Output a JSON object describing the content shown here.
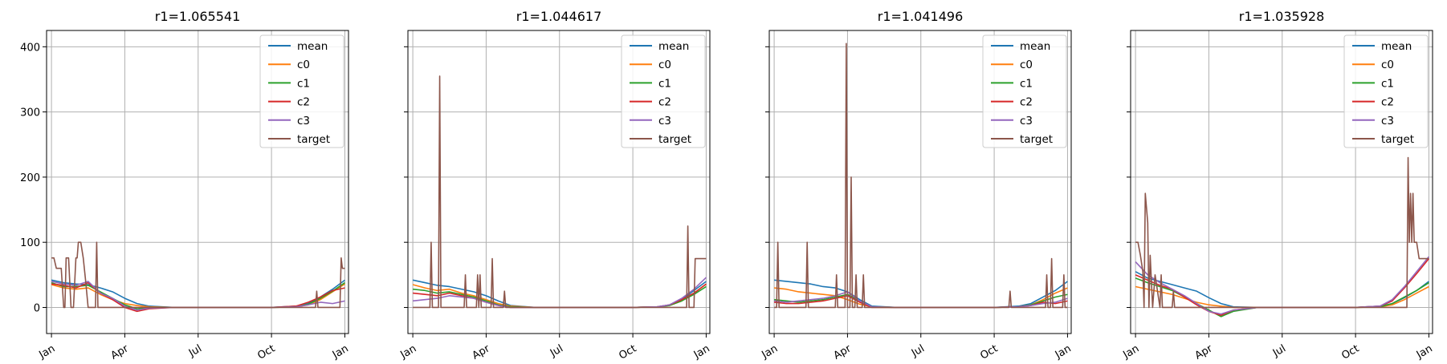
{
  "figure": {
    "sharey": true,
    "xtick_labels": [
      "Jan",
      "Apr",
      "Jul",
      "Oct",
      "Jan"
    ],
    "xtick_months": [
      0,
      3,
      6,
      9,
      12
    ],
    "ytick_labels": [
      "0",
      "100",
      "200",
      "300",
      "400"
    ],
    "yticks": [
      0,
      100,
      200,
      300,
      400
    ],
    "ylim": [
      -40,
      425
    ],
    "xlim_months": [
      -0.2,
      12.15
    ],
    "legend_entries": [
      "mean",
      "c0",
      "c1",
      "c2",
      "c3",
      "target"
    ],
    "colors": {
      "mean": "#1f77b4",
      "c0": "#ff7f0e",
      "c1": "#2ca02c",
      "c2": "#d62728",
      "c3": "#9467bd",
      "target": "#8c564b",
      "grid": "#b0b0b0",
      "axis": "#000000"
    }
  },
  "chart_data": [
    {
      "type": "line",
      "title": "r1=1.065541",
      "legend_placement": "top-right",
      "grid": true,
      "x_unit": "months from Jan",
      "series": [
        {
          "name": "mean",
          "x": [
            0,
            0.5,
            1,
            1.5,
            2,
            2.5,
            3,
            3.5,
            4,
            5,
            8,
            9,
            10,
            10.5,
            11,
            11.5,
            12
          ],
          "y": [
            42,
            38,
            36,
            35,
            30,
            24,
            14,
            6,
            2,
            0,
            0,
            0,
            2,
            6,
            16,
            28,
            42
          ]
        },
        {
          "name": "c0",
          "x": [
            0,
            0.5,
            1,
            1.5,
            2,
            2.5,
            3,
            3.5,
            4,
            5,
            8,
            9,
            10,
            10.5,
            11,
            11.5,
            12
          ],
          "y": [
            35,
            30,
            28,
            30,
            20,
            12,
            6,
            3,
            1,
            0,
            0,
            0,
            1,
            4,
            12,
            24,
            36
          ]
        },
        {
          "name": "c1",
          "x": [
            0,
            0.5,
            1,
            1.5,
            2,
            2.5,
            3,
            3.5,
            4,
            5,
            8,
            9,
            10,
            10.5,
            11,
            11.5,
            12
          ],
          "y": [
            38,
            32,
            32,
            34,
            24,
            14,
            4,
            -2,
            0,
            0,
            0,
            0,
            1,
            5,
            14,
            25,
            38
          ]
        },
        {
          "name": "c2",
          "x": [
            0,
            0.5,
            1,
            1.5,
            2,
            2.5,
            3,
            3.5,
            4,
            5,
            8,
            9,
            10,
            10.5,
            11,
            11.5,
            12
          ],
          "y": [
            36,
            34,
            30,
            38,
            22,
            12,
            0,
            -6,
            -2,
            0,
            0,
            0,
            2,
            8,
            16,
            26,
            30
          ]
        },
        {
          "name": "c3",
          "x": [
            0,
            0.5,
            1,
            1.5,
            2,
            2.5,
            3,
            3.5,
            4,
            5,
            8,
            9,
            10,
            10.5,
            11,
            11.5,
            12
          ],
          "y": [
            40,
            36,
            34,
            40,
            22,
            14,
            2,
            -4,
            -1,
            0,
            0,
            0,
            1,
            4,
            8,
            6,
            10
          ]
        },
        {
          "name": "target",
          "x": [
            0,
            0.1,
            0.2,
            0.4,
            0.5,
            0.55,
            0.6,
            0.7,
            0.8,
            0.9,
            1,
            1.05,
            1.1,
            1.2,
            1.3,
            1.4,
            1.5,
            1.6,
            1.8,
            1.85,
            1.9,
            2,
            4,
            8,
            9,
            10,
            10.8,
            10.85,
            10.9,
            11,
            11.5,
            11.8,
            11.85,
            11.9,
            12
          ],
          "y": [
            76,
            76,
            60,
            60,
            0,
            0,
            76,
            76,
            0,
            0,
            76,
            76,
            100,
            100,
            76,
            40,
            0,
            0,
            0,
            100,
            0,
            0,
            0,
            0,
            0,
            0,
            0,
            25,
            0,
            0,
            0,
            0,
            76,
            60,
            60
          ]
        }
      ]
    },
    {
      "type": "line",
      "title": "r1=1.044617",
      "legend_placement": "top-right",
      "grid": true,
      "x_unit": "months from Jan",
      "series": [
        {
          "name": "mean",
          "x": [
            0,
            0.5,
            1,
            1.5,
            2,
            2.5,
            3,
            3.5,
            4,
            5,
            8,
            9,
            10,
            10.5,
            11,
            11.5,
            12
          ],
          "y": [
            42,
            38,
            34,
            32,
            28,
            24,
            18,
            10,
            3,
            0,
            0,
            0,
            1,
            4,
            12,
            26,
            40
          ]
        },
        {
          "name": "c0",
          "x": [
            0,
            0.5,
            1,
            1.5,
            2,
            2.5,
            3,
            3.5,
            4,
            5,
            8,
            9,
            10,
            10.5,
            11,
            11.5,
            12
          ],
          "y": [
            35,
            30,
            26,
            28,
            22,
            18,
            12,
            6,
            2,
            0,
            0,
            0,
            1,
            3,
            10,
            22,
            36
          ]
        },
        {
          "name": "c1",
          "x": [
            0,
            0.5,
            1,
            1.5,
            2,
            2.5,
            3,
            3.5,
            4,
            5,
            8,
            9,
            10,
            10.5,
            11,
            11.5,
            12
          ],
          "y": [
            28,
            26,
            22,
            24,
            20,
            16,
            10,
            4,
            1,
            0,
            0,
            0,
            1,
            3,
            10,
            20,
            32
          ]
        },
        {
          "name": "c2",
          "x": [
            0,
            0.5,
            1,
            1.5,
            2,
            2.5,
            3,
            3.5,
            4,
            5,
            8,
            9,
            10,
            10.5,
            11,
            11.5,
            12
          ],
          "y": [
            22,
            20,
            18,
            22,
            18,
            14,
            8,
            3,
            0,
            0,
            0,
            0,
            1,
            4,
            12,
            22,
            36
          ]
        },
        {
          "name": "c3",
          "x": [
            0,
            0.5,
            1,
            1.5,
            2,
            2.5,
            3,
            3.5,
            4,
            5,
            8,
            9,
            10,
            10.5,
            11,
            11.5,
            12
          ],
          "y": [
            10,
            12,
            14,
            18,
            16,
            14,
            8,
            3,
            0,
            0,
            0,
            0,
            1,
            4,
            14,
            28,
            46
          ]
        },
        {
          "name": "target",
          "x": [
            0,
            0.7,
            0.75,
            0.8,
            1.05,
            1.1,
            1.15,
            1.2,
            2.1,
            2.15,
            2.2,
            2.6,
            2.65,
            2.7,
            2.75,
            2.8,
            2.85,
            3.2,
            3.25,
            3.3,
            3.7,
            3.75,
            3.8,
            4,
            8,
            11,
            11.2,
            11.25,
            11.3,
            11.5,
            11.55,
            12
          ],
          "y": [
            0,
            0,
            100,
            0,
            0,
            355,
            0,
            0,
            0,
            50,
            0,
            0,
            50,
            0,
            50,
            0,
            0,
            0,
            75,
            0,
            0,
            25,
            0,
            0,
            0,
            0,
            0,
            125,
            0,
            0,
            75,
            75
          ]
        }
      ]
    },
    {
      "type": "line",
      "title": "r1=1.041496",
      "legend_placement": "top-right",
      "grid": true,
      "x_unit": "months from Jan",
      "series": [
        {
          "name": "mean",
          "x": [
            0,
            0.5,
            1,
            1.5,
            2,
            2.5,
            3,
            3.5,
            4,
            5,
            8,
            9,
            10,
            10.5,
            11,
            11.5,
            12
          ],
          "y": [
            42,
            40,
            38,
            36,
            32,
            30,
            24,
            12,
            2,
            0,
            0,
            0,
            2,
            6,
            16,
            26,
            40
          ]
        },
        {
          "name": "c0",
          "x": [
            0,
            0.5,
            1,
            1.5,
            2,
            2.5,
            3,
            3.5,
            4,
            5,
            8,
            9,
            10,
            10.5,
            11,
            11.5,
            12
          ],
          "y": [
            30,
            28,
            24,
            22,
            20,
            18,
            12,
            5,
            1,
            0,
            0,
            0,
            1,
            4,
            12,
            22,
            30
          ]
        },
        {
          "name": "c1",
          "x": [
            0,
            0.5,
            1,
            1.5,
            2,
            2.5,
            3,
            3.5,
            4,
            5,
            8,
            9,
            10,
            10.5,
            11,
            11.5,
            12
          ],
          "y": [
            12,
            10,
            8,
            10,
            12,
            16,
            20,
            10,
            1,
            0,
            0,
            0,
            1,
            4,
            10,
            16,
            20
          ]
        },
        {
          "name": "c2",
          "x": [
            0,
            0.5,
            1,
            1.5,
            2,
            2.5,
            3,
            3.5,
            4,
            5,
            8,
            9,
            10,
            10.5,
            11,
            11.5,
            12
          ],
          "y": [
            8,
            6,
            6,
            8,
            10,
            14,
            18,
            8,
            0,
            0,
            0,
            0,
            1,
            3,
            8,
            6,
            10
          ]
        },
        {
          "name": "c3",
          "x": [
            0,
            0.5,
            1,
            1.5,
            2,
            2.5,
            3,
            3.5,
            4,
            5,
            8,
            9,
            10,
            10.5,
            11,
            11.5,
            12
          ],
          "y": [
            10,
            8,
            10,
            12,
            14,
            18,
            24,
            10,
            1,
            0,
            0,
            0,
            1,
            3,
            6,
            8,
            14
          ]
        },
        {
          "name": "target",
          "x": [
            0,
            0.1,
            0.15,
            0.2,
            1.3,
            1.35,
            1.4,
            2.5,
            2.55,
            2.6,
            2.9,
            2.95,
            3.0,
            3.1,
            3.15,
            3.2,
            3.3,
            3.35,
            3.4,
            3.6,
            3.65,
            3.7,
            4,
            8,
            9.6,
            9.65,
            9.7,
            11,
            11.1,
            11.15,
            11.2,
            11.3,
            11.35,
            11.4,
            11.8,
            11.85,
            11.9,
            12
          ],
          "y": [
            0,
            0,
            100,
            0,
            0,
            100,
            0,
            0,
            50,
            0,
            0,
            405,
            0,
            0,
            200,
            0,
            0,
            50,
            0,
            0,
            50,
            0,
            0,
            0,
            0,
            25,
            0,
            0,
            0,
            50,
            0,
            0,
            75,
            0,
            0,
            50,
            0,
            0
          ]
        }
      ]
    },
    {
      "type": "line",
      "title": "r1=1.035928",
      "legend_placement": "top-right",
      "grid": true,
      "x_unit": "months from Jan",
      "series": [
        {
          "name": "mean",
          "x": [
            0,
            0.5,
            1,
            1.5,
            2,
            2.5,
            3,
            3.5,
            4,
            5,
            8,
            9,
            10,
            10.5,
            11,
            11.5,
            12
          ],
          "y": [
            55,
            45,
            40,
            35,
            30,
            25,
            15,
            6,
            1,
            0,
            0,
            0,
            2,
            6,
            15,
            26,
            40
          ]
        },
        {
          "name": "c0",
          "x": [
            0,
            0.5,
            1,
            1.5,
            2,
            2.5,
            3,
            3.5,
            4,
            5,
            8,
            9,
            10,
            10.5,
            11,
            11.5,
            12
          ],
          "y": [
            32,
            28,
            24,
            20,
            14,
            8,
            4,
            2,
            0,
            0,
            0,
            0,
            1,
            4,
            12,
            22,
            32
          ]
        },
        {
          "name": "c1",
          "x": [
            0,
            0.5,
            1,
            1.5,
            2,
            2.5,
            3,
            3.5,
            4,
            5,
            8,
            9,
            10,
            10.5,
            11,
            11.5,
            12
          ],
          "y": [
            45,
            38,
            32,
            26,
            16,
            6,
            -4,
            -14,
            -6,
            0,
            0,
            0,
            1,
            6,
            16,
            26,
            38
          ]
        },
        {
          "name": "c2",
          "x": [
            0,
            0.5,
            1,
            1.5,
            2,
            2.5,
            3,
            3.5,
            4,
            5,
            8,
            9,
            10,
            10.5,
            11,
            11.5,
            12
          ],
          "y": [
            50,
            42,
            34,
            28,
            16,
            4,
            -6,
            -12,
            -4,
            0,
            0,
            0,
            2,
            10,
            30,
            52,
            75
          ]
        },
        {
          "name": "c3",
          "x": [
            0,
            0.5,
            1,
            1.5,
            2,
            2.5,
            3,
            3.5,
            4,
            5,
            8,
            9,
            10,
            10.5,
            11,
            11.5,
            12
          ],
          "y": [
            70,
            50,
            38,
            28,
            18,
            6,
            -6,
            -10,
            -4,
            0,
            0,
            0,
            2,
            12,
            32,
            55,
            78
          ]
        },
        {
          "name": "target",
          "x": [
            0,
            0.1,
            0.2,
            0.3,
            0.35,
            0.4,
            0.5,
            0.55,
            0.6,
            0.7,
            0.8,
            1.0,
            1.05,
            1.1,
            1.5,
            1.55,
            1.6,
            2,
            4,
            8,
            11,
            11.1,
            11.15,
            11.2,
            11.25,
            11.3,
            11.35,
            11.4,
            11.5,
            11.6,
            11.8,
            12
          ],
          "y": [
            100,
            100,
            80,
            55,
            0,
            175,
            130,
            0,
            80,
            0,
            50,
            0,
            50,
            0,
            0,
            25,
            0,
            0,
            0,
            0,
            0,
            0,
            230,
            100,
            175,
            100,
            175,
            100,
            100,
            75,
            75,
            75
          ]
        }
      ]
    }
  ]
}
